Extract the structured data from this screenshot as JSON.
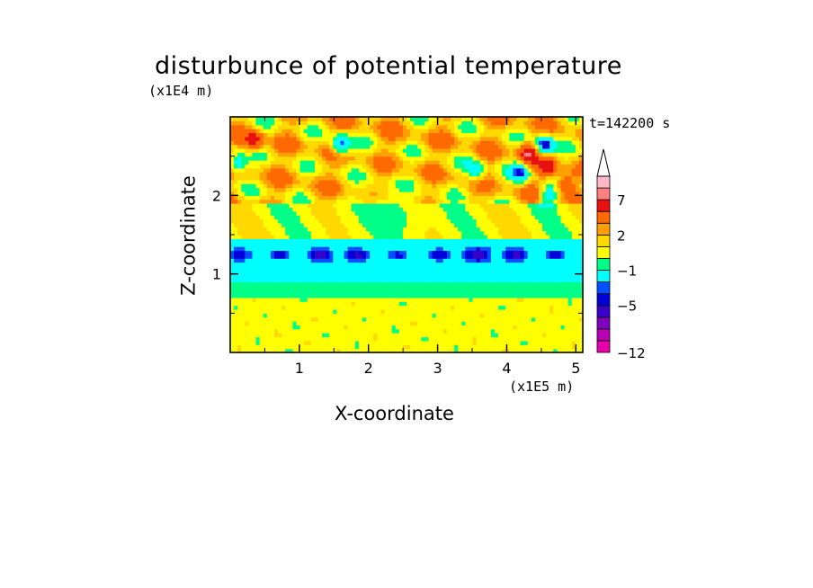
{
  "chart_data": {
    "type": "heatmap",
    "title": "disturbunce of potential temperature",
    "xlabel": "X-coordinate",
    "ylabel": "Z-coordinate",
    "x_unit": "(x1E5 m)",
    "y_unit": "(x1E4 m)",
    "annotation": "t=142200 s",
    "xlim": [
      0,
      5.1
    ],
    "ylim": [
      0,
      3.0
    ],
    "x_ticks": [
      "1",
      "2",
      "3",
      "4",
      "5"
    ],
    "x_tick_values": [
      1,
      2,
      3,
      4,
      5
    ],
    "y_ticks": [
      "1",
      "2"
    ],
    "y_tick_values": [
      1,
      2
    ],
    "colorbar": {
      "tick_labels": [
        "7",
        "2",
        "−1",
        "−5",
        "−12"
      ],
      "tick_levels": [
        7,
        2,
        -1,
        -5,
        -12
      ],
      "levels": [
        -12,
        -10,
        -8,
        -6,
        -5,
        -4,
        -3,
        -1,
        0,
        1,
        2,
        3,
        5,
        7,
        9,
        11
      ],
      "colors": [
        "#e800aa",
        "#b800b8",
        "#8000c0",
        "#3800c8",
        "#0000d8",
        "#0050ff",
        "#00ffff",
        "#00ff88",
        "#ffff00",
        "#ffd800",
        "#ffa000",
        "#ff6a00",
        "#e81010",
        "#ff8080",
        "#ffb8c8"
      ],
      "extend": "max"
    },
    "field_summary": [
      {
        "region": "z 0.0-0.7",
        "value": 0.5
      },
      {
        "region": "z 0.7-0.9",
        "value": -0.5
      },
      {
        "region": "z 0.9-1.4",
        "value": -2
      },
      {
        "region": "z 1.4-2.0",
        "value": 1
      },
      {
        "region": "z 2.0-3.0",
        "value": 2
      }
    ]
  }
}
